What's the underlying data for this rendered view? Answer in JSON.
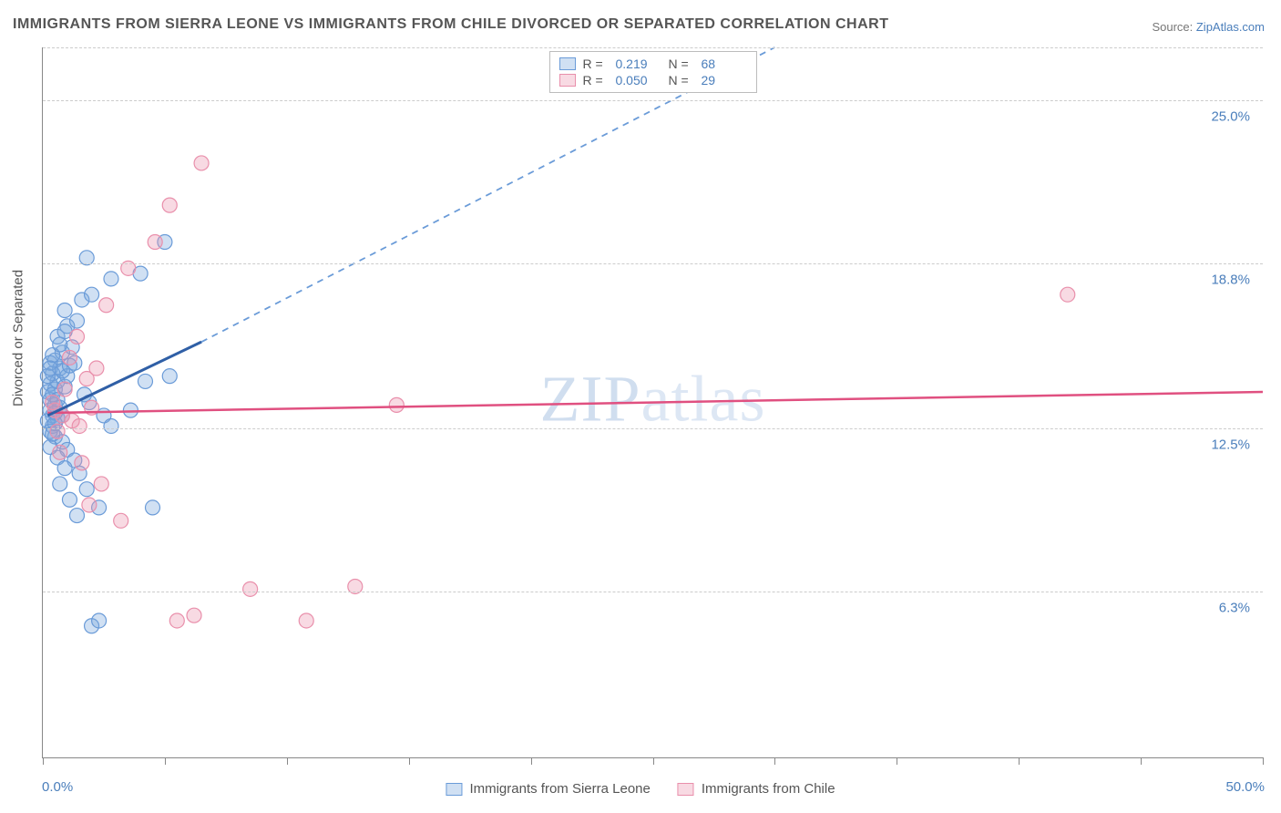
{
  "title": "IMMIGRANTS FROM SIERRA LEONE VS IMMIGRANTS FROM CHILE DIVORCED OR SEPARATED CORRELATION CHART",
  "source_prefix": "Source: ",
  "source_site": "ZipAtlas.com",
  "ylabel": "Divorced or Separated",
  "chart": {
    "type": "scatter",
    "xlim": [
      0,
      50
    ],
    "ylim": [
      0,
      27
    ],
    "x_tick_positions": [
      0,
      5,
      10,
      15,
      20,
      25,
      30,
      35,
      40,
      45,
      50
    ],
    "y_gridlines": [
      6.3,
      12.5,
      18.8,
      25.0,
      27.0
    ],
    "y_tick_labels": [
      "6.3%",
      "12.5%",
      "18.8%",
      "25.0%"
    ],
    "x_min_label": "0.0%",
    "x_max_label": "50.0%",
    "background": "#ffffff",
    "grid_color": "#cccccc",
    "axis_color": "#888888",
    "series": [
      {
        "name": "Immigrants from Sierra Leone",
        "fill": "rgba(120,165,220,0.35)",
        "stroke": "#6a9bd8",
        "line_solid_color": "#2f5fa6",
        "line_dash_color": "#6a9bd8",
        "marker_radius": 8,
        "R": "0.219",
        "N": "68",
        "trend_start_xy": [
          0.2,
          13.0
        ],
        "trend_solid_end_xy": [
          6.5,
          15.8
        ],
        "trend_dash_end_xy": [
          30,
          27.0
        ],
        "points": [
          [
            0.3,
            13.2
          ],
          [
            0.4,
            13.0
          ],
          [
            0.5,
            13.4
          ],
          [
            0.6,
            12.9
          ],
          [
            0.4,
            12.6
          ],
          [
            0.7,
            13.3
          ],
          [
            0.8,
            13.0
          ],
          [
            0.5,
            14.0
          ],
          [
            0.6,
            14.3
          ],
          [
            0.9,
            14.1
          ],
          [
            0.4,
            14.6
          ],
          [
            0.7,
            14.8
          ],
          [
            1.0,
            14.5
          ],
          [
            0.5,
            15.1
          ],
          [
            0.8,
            15.4
          ],
          [
            1.2,
            15.6
          ],
          [
            0.6,
            16.0
          ],
          [
            1.0,
            16.4
          ],
          [
            1.4,
            16.6
          ],
          [
            0.9,
            17.0
          ],
          [
            1.6,
            17.4
          ],
          [
            2.0,
            17.6
          ],
          [
            2.8,
            18.2
          ],
          [
            4.0,
            18.4
          ],
          [
            1.8,
            19.0
          ],
          [
            5.0,
            19.6
          ],
          [
            0.5,
            12.2
          ],
          [
            0.8,
            12.0
          ],
          [
            1.0,
            11.7
          ],
          [
            0.6,
            11.4
          ],
          [
            1.3,
            11.3
          ],
          [
            0.9,
            11.0
          ],
          [
            1.5,
            10.8
          ],
          [
            0.7,
            10.4
          ],
          [
            1.8,
            10.2
          ],
          [
            1.1,
            9.8
          ],
          [
            2.3,
            9.5
          ],
          [
            1.4,
            9.2
          ],
          [
            4.5,
            9.5
          ],
          [
            2.0,
            5.0
          ],
          [
            2.3,
            5.2
          ],
          [
            4.2,
            14.3
          ],
          [
            5.2,
            14.5
          ],
          [
            3.6,
            13.2
          ],
          [
            2.5,
            13.0
          ],
          [
            2.8,
            12.6
          ],
          [
            1.9,
            13.5
          ],
          [
            0.3,
            13.6
          ],
          [
            0.2,
            12.8
          ],
          [
            0.3,
            14.2
          ],
          [
            0.2,
            13.9
          ],
          [
            0.4,
            13.8
          ],
          [
            0.5,
            13.1
          ],
          [
            0.3,
            15.0
          ],
          [
            0.4,
            15.3
          ],
          [
            0.3,
            12.4
          ],
          [
            0.2,
            14.5
          ],
          [
            0.3,
            11.8
          ],
          [
            0.4,
            12.3
          ],
          [
            0.5,
            12.7
          ],
          [
            0.3,
            14.8
          ],
          [
            0.6,
            13.6
          ],
          [
            0.8,
            14.7
          ],
          [
            1.1,
            14.9
          ],
          [
            0.7,
            15.7
          ],
          [
            0.9,
            16.2
          ],
          [
            1.3,
            15.0
          ],
          [
            1.7,
            13.8
          ]
        ]
      },
      {
        "name": "Immigrants from Chile",
        "fill": "rgba(235,150,175,0.35)",
        "stroke": "#e98fab",
        "line_solid_color": "#e05080",
        "marker_radius": 8,
        "R": "0.050",
        "N": "29",
        "trend_start_xy": [
          0.2,
          13.1
        ],
        "trend_solid_end_xy": [
          50,
          13.9
        ],
        "points": [
          [
            0.5,
            13.2
          ],
          [
            0.8,
            13.0
          ],
          [
            1.2,
            12.8
          ],
          [
            0.6,
            12.4
          ],
          [
            1.5,
            12.6
          ],
          [
            0.9,
            14.0
          ],
          [
            1.8,
            14.4
          ],
          [
            1.1,
            15.2
          ],
          [
            2.2,
            14.8
          ],
          [
            1.4,
            16.0
          ],
          [
            2.6,
            17.2
          ],
          [
            3.5,
            18.6
          ],
          [
            4.6,
            19.6
          ],
          [
            5.2,
            21.0
          ],
          [
            6.5,
            22.6
          ],
          [
            0.7,
            11.6
          ],
          [
            1.6,
            11.2
          ],
          [
            2.4,
            10.4
          ],
          [
            1.9,
            9.6
          ],
          [
            3.2,
            9.0
          ],
          [
            5.5,
            5.2
          ],
          [
            6.2,
            5.4
          ],
          [
            10.8,
            5.2
          ],
          [
            8.5,
            6.4
          ],
          [
            12.8,
            6.5
          ],
          [
            42.0,
            17.6
          ],
          [
            14.5,
            13.4
          ],
          [
            2.0,
            13.3
          ],
          [
            0.4,
            13.5
          ]
        ]
      }
    ]
  },
  "watermark": {
    "zip": "ZIP",
    "atlas": "atlas"
  },
  "legend_labels": {
    "R": "R =",
    "N": "N ="
  },
  "bottom_legend": [
    "Immigrants from Sierra Leone",
    "Immigrants from Chile"
  ]
}
